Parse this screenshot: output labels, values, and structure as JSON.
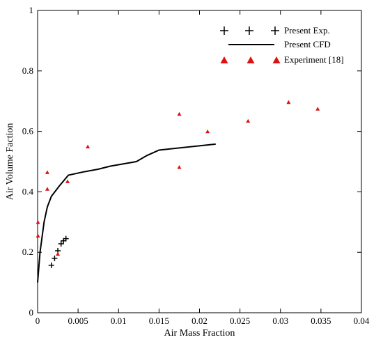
{
  "chart_data": {
    "type": "scatter",
    "xlabel": "Air Mass Fraction",
    "ylabel": "Air Volume Faction",
    "xlim": [
      0,
      0.04
    ],
    "ylim": [
      0,
      1
    ],
    "xticks": [
      0,
      0.005,
      0.01,
      0.015,
      0.02,
      0.025,
      0.03,
      0.035,
      0.04
    ],
    "xtick_labels": [
      "0",
      "0.005",
      "0.01",
      "0.015",
      "0.02",
      "0.025",
      "0.03",
      "0.035",
      "0.04"
    ],
    "yticks": [
      0,
      0.2,
      0.4,
      0.6,
      0.8,
      1
    ],
    "ytick_labels": [
      "0",
      "0.2",
      "0.4",
      "0.6",
      "0.8",
      "1"
    ],
    "grid": false,
    "legend_position": "top-right",
    "series": [
      {
        "name": "Present Exp.",
        "marker": "plus",
        "color": "#000000",
        "points": [
          [
            0.0017,
            0.157
          ],
          [
            0.0021,
            0.18
          ],
          [
            0.0025,
            0.205
          ],
          [
            0.0029,
            0.228
          ],
          [
            0.0032,
            0.238
          ],
          [
            0.0035,
            0.245
          ]
        ]
      },
      {
        "name": "Present CFD",
        "marker": "line",
        "color": "#000000",
        "points": [
          [
            0.0,
            0.1
          ],
          [
            0.0003,
            0.2
          ],
          [
            0.0008,
            0.3
          ],
          [
            0.0012,
            0.35
          ],
          [
            0.0017,
            0.385
          ],
          [
            0.0027,
            0.42
          ],
          [
            0.0038,
            0.455
          ],
          [
            0.0055,
            0.465
          ],
          [
            0.0075,
            0.475
          ],
          [
            0.009,
            0.485
          ],
          [
            0.0122,
            0.5
          ],
          [
            0.0135,
            0.52
          ],
          [
            0.015,
            0.538
          ],
          [
            0.022,
            0.558
          ]
        ]
      },
      {
        "name": "Experiment [18]",
        "marker": "triangle",
        "color": "#e01010",
        "points": [
          [
            5e-05,
            0.3
          ],
          [
            5e-05,
            0.255
          ],
          [
            0.0012,
            0.465
          ],
          [
            0.0012,
            0.41
          ],
          [
            0.0025,
            0.195
          ],
          [
            0.0037,
            0.435
          ],
          [
            0.0062,
            0.55
          ],
          [
            0.0175,
            0.658
          ],
          [
            0.0175,
            0.482
          ],
          [
            0.021,
            0.6
          ],
          [
            0.026,
            0.635
          ],
          [
            0.031,
            0.697
          ],
          [
            0.0346,
            0.675
          ]
        ]
      }
    ]
  }
}
